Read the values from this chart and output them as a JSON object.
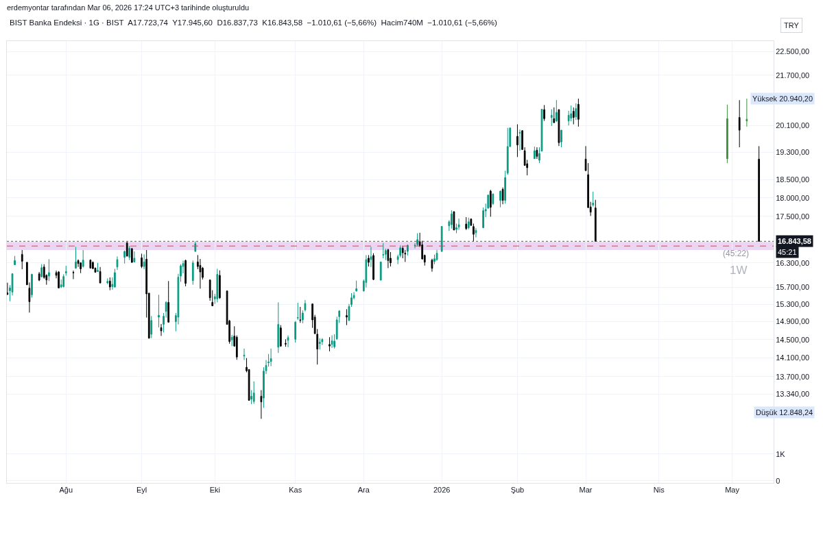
{
  "chart_data": [
    {
      "type": "candlestick",
      "title": "BIST Banka Endeksi · 1G · BIST  A17.723,74  Y17.945,60  D16.837,73  K16.843,58  −1.010,61 (−5,66%)  Hacim740M  −1.010,61 (−5,66%)",
      "subtitle": "erdemyontar tarafından Mar 06, 2026 17:24 UTC+3 tarihinde oluşturuldu",
      "log": "y",
      "grid": true,
      "tick_labels": "y",
      "xlim": [
        "2025-07-07T18:00",
        "2026-05-18"
      ],
      "xticks": [
        {
          "value": "2025-08-01",
          "label": null
        },
        {
          "value": "2025-09-01",
          "label": null
        },
        {
          "value": "2025-10-01",
          "label": null
        },
        {
          "value": "2025-11-03",
          "label": null
        },
        {
          "value": "2025-12-01",
          "label": null
        },
        {
          "value": "2026-01-02",
          "label": null
        },
        {
          "value": "2026-02-02",
          "label": null
        },
        {
          "value": "2026-03-02",
          "label": null
        },
        {
          "value": "2026-04-01",
          "label": null
        },
        {
          "value": "2026-05-01",
          "label": null
        }
      ],
      "ylim": [
        12840,
        22860
      ],
      "yticks": [
        {
          "value": 13340,
          "label": "13.340,00"
        },
        {
          "value": 13700,
          "label": "13.700,00"
        },
        {
          "value": 14100,
          "label": "14.100,00"
        },
        {
          "value": 14500,
          "label": "14.500,00"
        },
        {
          "value": 14900,
          "label": "14.900,00"
        },
        {
          "value": 15300,
          "label": "15.300,00"
        },
        {
          "value": 15700,
          "label": "15.700,00"
        },
        {
          "value": 16300,
          "label": "16.300,00"
        },
        {
          "value": 17500,
          "label": "17.500,00"
        },
        {
          "value": 18000,
          "label": "18.000,00"
        },
        {
          "value": 18500,
          "label": "18.500,00"
        },
        {
          "value": 19300,
          "label": "19.300,00"
        },
        {
          "value": 20100,
          "label": "20.100,00"
        },
        {
          "value": 21700,
          "label": "21.700,00"
        },
        {
          "value": 22500,
          "label": "22.500,00"
        }
      ],
      "ref_lines": [
        {
          "axis": "y",
          "value": 16843.58,
          "label": "16.843,58",
          "line_style": "dotted",
          "color": "#555555"
        },
        {
          "axis": "y",
          "value": 16723,
          "line_style": "dashed",
          "color": "#f23645"
        }
      ],
      "bands": [
        {
          "axis": "y",
          "from": 16620,
          "to": 16826,
          "color": "#e1c4ec"
        }
      ],
      "annotations": [
        "TRY",
        "45:21",
        "(45:22)",
        "1W",
        "Yüksek 20.940,20",
        "Düşük 12.848,24"
      ],
      "series": [
        {
          "x": [
            "2025-07-08",
            "2025-07-09",
            "2025-07-10",
            "2025-07-11",
            "2025-07-14",
            "2025-07-16",
            "2025-07-17",
            "2025-07-18",
            "2025-07-21",
            "2025-07-22",
            "2025-07-23",
            "2025-07-24",
            "2025-07-25",
            "2025-07-28",
            "2025-07-29",
            "2025-07-30",
            "2025-07-31",
            "2025-08-01",
            "2025-08-04",
            "2025-08-05",
            "2025-08-06",
            "2025-08-07",
            "2025-08-08",
            "2025-08-11",
            "2025-08-12",
            "2025-08-13",
            "2025-08-14",
            "2025-08-15",
            "2025-08-18",
            "2025-08-19",
            "2025-08-20",
            "2025-08-21",
            "2025-08-22",
            "2025-08-25",
            "2025-08-26",
            "2025-08-27",
            "2025-08-28",
            "2025-08-29",
            "2025-09-01",
            "2025-09-02",
            "2025-09-03",
            "2025-09-04",
            "2025-09-05",
            "2025-09-08",
            "2025-09-09",
            "2025-09-10",
            "2025-09-11",
            "2025-09-12",
            "2025-09-15",
            "2025-09-16",
            "2025-09-17",
            "2025-09-18",
            "2025-09-19",
            "2025-09-22",
            "2025-09-23",
            "2025-09-24",
            "2025-09-25",
            "2025-09-26",
            "2025-09-29",
            "2025-09-30",
            "2025-10-01",
            "2025-10-02",
            "2025-10-03",
            "2025-10-06",
            "2025-10-07",
            "2025-10-08",
            "2025-10-09",
            "2025-10-10",
            "2025-10-13",
            "2025-10-14",
            "2025-10-15",
            "2025-10-16",
            "2025-10-17",
            "2025-10-20",
            "2025-10-21",
            "2025-10-22",
            "2025-10-23",
            "2025-10-24",
            "2025-10-27",
            "2025-10-28",
            "2025-10-30",
            "2025-10-31",
            "2025-11-03",
            "2025-11-04",
            "2025-11-05",
            "2025-11-06",
            "2025-11-07",
            "2025-11-10",
            "2025-11-11",
            "2025-11-12",
            "2025-11-13",
            "2025-11-14",
            "2025-11-17",
            "2025-11-18",
            "2025-11-19",
            "2025-11-20",
            "2025-11-21",
            "2025-11-24",
            "2025-11-25",
            "2025-11-26",
            "2025-11-27",
            "2025-11-28",
            "2025-12-01",
            "2025-12-02",
            "2025-12-03",
            "2025-12-04",
            "2025-12-05",
            "2025-12-08",
            "2025-12-09",
            "2025-12-10",
            "2025-12-11",
            "2025-12-12",
            "2025-12-15",
            "2025-12-16",
            "2025-12-17",
            "2025-12-18",
            "2025-12-19",
            "2025-12-22",
            "2025-12-23",
            "2025-12-24",
            "2025-12-25",
            "2025-12-26",
            "2025-12-29",
            "2025-12-30",
            "2025-12-31",
            "2026-01-02",
            "2026-01-05",
            "2026-01-06",
            "2026-01-07",
            "2026-01-08",
            "2026-01-09",
            "2026-01-12",
            "2026-01-13",
            "2026-01-14",
            "2026-01-15",
            "2026-01-16",
            "2026-01-19",
            "2026-01-20",
            "2026-01-21",
            "2026-01-22",
            "2026-01-23",
            "2026-01-26",
            "2026-01-27",
            "2026-01-28",
            "2026-01-29",
            "2026-01-30",
            "2026-02-02",
            "2026-02-03",
            "2026-02-04",
            "2026-02-05",
            "2026-02-06",
            "2026-02-09",
            "2026-02-10",
            "2026-02-11",
            "2026-02-12",
            "2026-02-13",
            "2026-02-16",
            "2026-02-17",
            "2026-02-18",
            "2026-02-19",
            "2026-02-20",
            "2026-02-23",
            "2026-02-24",
            "2026-02-25",
            "2026-02-26",
            "2026-02-27",
            "2026-03-02",
            "2026-03-03",
            "2026-03-04",
            "2026-03-05",
            "2026-03-06"
          ],
          "ohlc": [
            [
              15568,
              15813,
              15519,
              15535
            ],
            [
              15621,
              15752,
              15373,
              15687
            ],
            [
              15589,
              16046,
              15507,
              16029
            ],
            [
              16253,
              16471,
              16243,
              16356
            ],
            [
              16511,
              16621,
              16142,
              16339
            ],
            [
              16312,
              16317,
              15756,
              15764
            ],
            [
              15682,
              15818,
              15108,
              15362
            ],
            [
              15524,
              16030,
              15459,
              16017
            ],
            [
              16029,
              16075,
              15852,
              15875
            ],
            [
              15958,
              16265,
              15941,
              16180
            ],
            [
              16197,
              16265,
              15908,
              15941
            ],
            [
              15991,
              16017,
              15764,
              15880
            ],
            [
              15974,
              16390,
              15852,
              16058
            ],
            [
              16058,
              16108,
              15918,
              15991
            ],
            [
              16075,
              16096,
              15682,
              15687
            ],
            [
              15710,
              15891,
              15687,
              15764
            ],
            [
              15720,
              16017,
              15698,
              15963
            ],
            [
              16051,
              16226,
              15984,
              16085
            ],
            [
              16063,
              16108,
              15900,
              16055
            ],
            [
              16169,
              16700,
              16152,
              16322
            ],
            [
              16356,
              16385,
              16197,
              16283
            ],
            [
              16300,
              16312,
              16046,
              16152
            ],
            [
              16209,
              16621,
              16185,
              16368
            ],
            [
              16368,
              16385,
              16158,
              16169
            ],
            [
              16312,
              16334,
              16142,
              16158
            ],
            [
              16169,
              16185,
              16058,
              16068
            ],
            [
              16085,
              16300,
              16075,
              16113
            ],
            [
              16085,
              16197,
              15797,
              15808
            ],
            [
              15808,
              15918,
              15781,
              15846
            ],
            [
              15852,
              15941,
              15633,
              15710
            ],
            [
              15720,
              15941,
              15644,
              15775
            ],
            [
              15710,
              16152,
              15698,
              16058
            ],
            [
              16197,
              16459,
              16125,
              16380
            ],
            [
              16437,
              16609,
              16283,
              16586
            ],
            [
              16799,
              16840,
              16453,
              16471
            ],
            [
              16437,
              16724,
              16368,
              16665
            ],
            [
              16655,
              16677,
              16300,
              16312
            ],
            [
              16322,
              16586,
              16312,
              16414
            ],
            [
              16425,
              16528,
              16169,
              16209
            ],
            [
              16209,
              16511,
              16142,
              16322
            ],
            [
              16390,
              16621,
              14994,
              15546
            ],
            [
              15562,
              15570,
              14517,
              14532
            ],
            [
              14618,
              15030,
              14532,
              14927
            ],
            [
              15005,
              15524,
              14771,
              15045
            ],
            [
              14765,
              14849,
              14581,
              14694
            ],
            [
              14838,
              15099,
              14658,
              15025
            ],
            [
              15135,
              15373,
              14994,
              15346
            ],
            [
              15346,
              15852,
              14880,
              14889
            ],
            [
              14900,
              15099,
              14684,
              15040
            ],
            [
              15005,
              16029,
              14838,
              15946
            ],
            [
              15974,
              16265,
              15835,
              16226
            ],
            [
              16209,
              16356,
              16041,
              16283
            ],
            [
              16356,
              16380,
              15726,
              15797
            ],
            [
              15863,
              16356,
              15764,
              16300
            ],
            [
              16586,
              16840,
              16580,
              16782
            ],
            [
              16322,
              16494,
              16142,
              16209
            ],
            [
              16236,
              16397,
              15670,
              16075
            ],
            [
              16169,
              16197,
              15891,
              15941
            ],
            [
              15880,
              15891,
              15384,
              15454
            ],
            [
              15346,
              15633,
              15260,
              15266
            ],
            [
              15427,
              15546,
              15310,
              15481
            ],
            [
              15427,
              16152,
              15346,
              16017
            ],
            [
              15991,
              16113,
              15427,
              15454
            ],
            [
              15616,
              15620,
              14835,
              14838
            ],
            [
              14916,
              14942,
              14407,
              14456
            ],
            [
              14491,
              14603,
              14356,
              14552
            ],
            [
              14577,
              14796,
              14341,
              14356
            ],
            [
              14552,
              14592,
              14059,
              14118
            ],
            [
              14139,
              14301,
              14055,
              14158
            ],
            [
              13899,
              14095,
              13793,
              13826
            ],
            [
              13851,
              13861,
              13206,
              13216
            ],
            [
              13239,
              13424,
              13137,
              13299
            ],
            [
              13192,
              13603,
              13147,
              13364
            ],
            [
              13299,
              13424,
              12848.24,
              13184
            ],
            [
              13261,
              13899,
              13065,
              13818
            ],
            [
              13827,
              14055,
              13755,
              13938
            ],
            [
              13996,
              14183,
              13913,
              14011
            ],
            [
              14021,
              14301,
              13923,
              14084
            ],
            [
              14331,
              15346,
              14207,
              14838
            ],
            [
              14760,
              14822,
              14341,
              14356
            ],
            [
              14416,
              14505,
              14341,
              14401
            ],
            [
              14482,
              14592,
              14331,
              14542
            ],
            [
              14506,
              14911,
              14431,
              14889
            ],
            [
              14983,
              15336,
              14942,
              14994
            ],
            [
              14942,
              15241,
              14874,
              14931
            ],
            [
              14942,
              15162,
              14864,
              15099
            ],
            [
              15171,
              15400,
              15135,
              15320
            ],
            [
              15310,
              15315,
              14760,
              14942
            ],
            [
              15005,
              15056,
              14618,
              14633
            ],
            [
              14618,
              14735,
              13957,
              14291
            ],
            [
              14411,
              14531,
              14281,
              14441
            ],
            [
              14451,
              14531,
              14380,
              14501
            ],
            [
              14391,
              14552,
              14242,
              14356
            ],
            [
              14391,
              14592,
              14316,
              14471
            ],
            [
              14341,
              14618,
              14301,
              14466
            ],
            [
              14516,
              15014,
              14491,
              14942
            ],
            [
              15014,
              15162,
              14874,
              15146
            ],
            [
              15040,
              15187,
              14822,
              15005
            ],
            [
              14927,
              15310,
              14916,
              15250
            ],
            [
              15294,
              15562,
              15241,
              15454
            ],
            [
              15454,
              15589,
              15417,
              15508
            ],
            [
              15616,
              15863,
              15600,
              15670
            ],
            [
              15616,
              15891,
              15600,
              15852
            ],
            [
              15818,
              16494,
              15698,
              16380
            ],
            [
              16414,
              16494,
              16209,
              16312
            ],
            [
              16380,
              16700,
              16197,
              16453
            ],
            [
              16483,
              16540,
              15875,
              15891
            ],
            [
              15875,
              16330,
              15870,
              16322
            ],
            [
              16494,
              16799,
              16414,
              16506
            ],
            [
              16511,
              16655,
              16368,
              16609
            ],
            [
              16626,
              16655,
              16169,
              16356
            ],
            [
              16414,
              16569,
              16209,
              16300
            ],
            [
              16380,
              16506,
              16265,
              16453
            ],
            [
              16483,
              16741,
              16437,
              16677
            ],
            [
              16665,
              16712,
              16414,
              16552
            ],
            [
              16540,
              16621,
              16322,
              16523
            ],
            [
              16586,
              16759,
              16483,
              16741
            ],
            [
              16729,
              16799,
              16665,
              16741
            ],
            [
              16759,
              17052,
              16724,
              16887
            ],
            [
              16840,
              17065,
              16700,
              16724
            ],
            [
              16752,
              16857,
              16380,
              16397
            ],
            [
              16488,
              16506,
              16231,
              16317
            ],
            [
              16368,
              16402,
              16080,
              16164
            ],
            [
              16334,
              16506,
              16265,
              16402
            ],
            [
              16380,
              16626,
              16351,
              16540
            ],
            [
              16586,
              17240,
              16580,
              17232
            ],
            [
              17245,
              17395,
              17114,
              17353
            ],
            [
              17276,
              17659,
              17173,
              17560
            ],
            [
              17622,
              17630,
              17130,
              17137
            ],
            [
              17155,
              17305,
              17052,
              17197
            ],
            [
              17214,
              17438,
              17142,
              17276
            ],
            [
              17294,
              17476,
              17137,
              17173
            ],
            [
              17197,
              17463,
              17155,
              17353
            ],
            [
              17425,
              17444,
              17245,
              17258
            ],
            [
              17227,
              17305,
              16840,
              17024
            ],
            [
              17065,
              17186,
              16945,
              17125
            ],
            [
              17197,
              17737,
              17190,
              17652
            ],
            [
              17640,
              17841,
              17476,
              17683
            ],
            [
              17719,
              18080,
              17700,
              18075
            ],
            [
              18183,
              18221,
              17487,
              17741
            ],
            [
              17841,
              18112,
              17804,
              18107
            ],
            [
              17929,
              18202,
              17741,
              18183
            ],
            [
              18234,
              18285,
              17823,
              17929
            ],
            [
              17929,
              18759,
              17841,
              18564
            ],
            [
              18691,
              20026,
              18646,
              19462
            ],
            [
              19462,
              20030,
              19455,
              20023
            ],
            [
              19768,
              20134,
              19154,
              19511
            ],
            [
              19865,
              19976,
              19340,
              19885
            ],
            [
              19940,
              19955,
              19370,
              19375
            ],
            [
              19340,
              19442,
              18905,
              18912
            ],
            [
              18959,
              19073,
              18627,
              18845
            ],
            [
              19106,
              19462,
              19100,
              19340
            ],
            [
              19354,
              19442,
              19100,
              19174
            ],
            [
              19060,
              19442,
              18978,
              19260
            ],
            [
              19326,
              20612,
              19320,
              20604
            ],
            [
              20590,
              20735,
              20240,
              20310
            ],
            [
              20345,
              20604,
              20085,
              20415
            ],
            [
              20310,
              20660,
              20180,
              20185
            ],
            [
              20240,
              20892,
              20205,
              20505
            ],
            [
              20590,
              20600,
              19478,
              19579
            ],
            [
              19600,
              19960,
              19442,
              19955
            ],
            [
              20240,
              20555,
              20100,
              20415
            ],
            [
              20325,
              20721,
              20226,
              20464
            ],
            [
              20540,
              20660,
              20134,
              20345
            ],
            [
              20366,
              20790,
              20270,
              20625
            ],
            [
              20758,
              20940.2,
              20065,
              20290
            ],
            [
              19094,
              19476,
              18745,
              18765
            ],
            [
              18646,
              18978,
              17725,
              17732
            ],
            [
              17750,
              17888,
              17507,
              17610
            ],
            [
              17804,
              18170,
              17760,
              17854.19
            ],
            [
              17723.74,
              17945.6,
              16837.73,
              16843.58
            ]
          ],
          "colors": [
            "#000000",
            "#089981",
            "#089981",
            "#089981",
            "#000000",
            "#000000",
            "#000000",
            "#089981",
            "#000000",
            "#089981",
            "#000000",
            "#000000",
            "#089981",
            "#000000",
            "#000000",
            "#089981",
            "#089981",
            "#089981",
            "#000000",
            "#089981",
            "#000000",
            "#000000",
            "#089981",
            "#000000",
            "#000000",
            "#000000",
            "#089981",
            "#000000",
            "#089981",
            "#000000",
            "#089981",
            "#089981",
            "#089981",
            "#089981",
            "#000000",
            "#089981",
            "#000000",
            "#089981",
            "#000000",
            "#089981",
            "#000000",
            "#000000",
            "#089981",
            "#089981",
            "#000000",
            "#089981",
            "#089981",
            "#000000",
            "#089981",
            "#089981",
            "#089981",
            "#089981",
            "#000000",
            "#089981",
            "#089981",
            "#000000",
            "#000000",
            "#000000",
            "#000000",
            "#000000",
            "#089981",
            "#089981",
            "#000000",
            "#000000",
            "#000000",
            "#089981",
            "#000000",
            "#000000",
            "#089981",
            "#000000",
            "#000000",
            "#089981",
            "#089981",
            "#000000",
            "#089981",
            "#089981",
            "#089981",
            "#089981",
            "#089981",
            "#000000",
            "#000000",
            "#089981",
            "#089981",
            "#089981",
            "#000000",
            "#089981",
            "#089981",
            "#000000",
            "#000000",
            "#000000",
            "#089981",
            "#089981",
            "#000000",
            "#089981",
            "#089981",
            "#089981",
            "#089981",
            "#000000",
            "#089981",
            "#089981",
            "#089981",
            "#089981",
            "#089981",
            "#089981",
            "#000000",
            "#089981",
            "#000000",
            "#089981",
            "#089981",
            "#089981",
            "#000000",
            "#000000",
            "#089981",
            "#089981",
            "#000000",
            "#000000",
            "#089981",
            "#089981",
            "#089981",
            "#000000",
            "#000000",
            "#000000",
            "#000000",
            "#089981",
            "#089981",
            "#089981",
            "#089981",
            "#089981",
            "#000000",
            "#089981",
            "#089981",
            "#000000",
            "#089981",
            "#000000",
            "#000000",
            "#089981",
            "#089981",
            "#089981",
            "#089981",
            "#000000",
            "#089981",
            "#089981",
            "#000000",
            "#089981",
            "#089981",
            "#089981",
            "#000000",
            "#089981",
            "#000000",
            "#000000",
            "#000000",
            "#089981",
            "#000000",
            "#089981",
            "#089981",
            "#000000",
            "#089981",
            "#000000",
            "#089981",
            "#000000",
            "#089981",
            "#089981",
            "#089981",
            "#000000",
            "#089981",
            "#000000",
            "#000000",
            "#000000",
            "#000000",
            "#089981",
            "#000000"
          ]
        },
        {
          "x": [
            "2026-04-29",
            "2026-05-04",
            "2026-05-07",
            "2026-05-12"
          ],
          "ohlc": [
            [
              19106,
              20748,
              18978,
              20310
            ],
            [
              20345,
              20892,
              19442,
              19955
            ],
            [
              20240,
              20940.2,
              20065,
              20290
            ],
            [
              19094,
              19476,
              16837.73,
              16843.58
            ]
          ],
          "colors": [
            "#3d8f3d",
            "#000000",
            "#3d8f3d",
            "#000000"
          ]
        }
      ]
    },
    {
      "type": "bar",
      "grid": true,
      "xlim": [
        "2025-07-07T18:00",
        "2026-05-18"
      ],
      "xticks": [
        {
          "value": "2025-08-01",
          "label": "Ağu"
        },
        {
          "value": "2025-09-01",
          "label": "Eyl"
        },
        {
          "value": "2025-10-01",
          "label": "Eki"
        },
        {
          "value": "2025-11-03",
          "label": "Kas"
        },
        {
          "value": "2025-12-01",
          "label": "Ara"
        },
        {
          "value": "2026-01-02",
          "label": "2026"
        },
        {
          "value": "2026-02-02",
          "label": "Şub"
        },
        {
          "value": "2026-03-02",
          "label": "Mar"
        },
        {
          "value": "2026-04-01",
          "label": "Nis"
        },
        {
          "value": "2026-05-01",
          "label": "May"
        }
      ],
      "ylim": [
        -80,
        2300
      ],
      "yticks": [
        0,
        {
          "value": 1000,
          "label": "1K"
        }
      ]
    }
  ]
}
